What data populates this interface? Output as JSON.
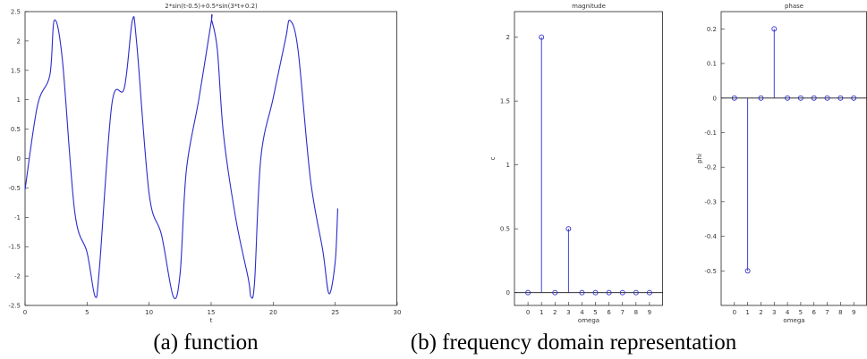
{
  "chart_data": [
    {
      "type": "line",
      "title": "2*sin(t-0.5)+0.5*sin(3*t+0.2)",
      "xlabel": "t",
      "ylabel": "",
      "xlim": [
        0,
        30
      ],
      "ylim": [
        -2.5,
        2.5
      ],
      "xticks": [
        "0",
        "5",
        "10",
        "15",
        "20",
        "25",
        "30"
      ],
      "yticks": [
        "2.5",
        "2",
        "1.5",
        "1",
        "0.5",
        "0",
        "-0.5",
        "-1",
        "-1.5",
        "-2",
        "-2.5"
      ],
      "x_range": [
        0,
        25.2
      ],
      "series": [
        {
          "x": [
            0,
            1,
            2,
            2.35,
            3,
            4,
            5,
            5.65,
            6,
            7,
            8,
            8.65,
            9,
            10,
            11,
            11.95,
            12.5,
            13,
            14,
            15,
            15.05,
            15.5,
            16,
            17,
            18,
            18.2,
            18.5,
            19,
            20,
            21,
            21.35,
            22,
            23,
            24,
            24.5,
            25,
            25.2
          ],
          "y": [
            -0.53,
            0.9,
            1.42,
            2.35,
            1.7,
            -0.9,
            -1.6,
            -2.35,
            -1.85,
            0.93,
            1.2,
            2.35,
            1.96,
            -0.6,
            -1.3,
            -2.35,
            -1.95,
            -0.2,
            1.0,
            2.32,
            2.35,
            1.85,
            0.4,
            -1.04,
            -2.05,
            -2.35,
            -2.1,
            0.0,
            1.03,
            2.04,
            2.35,
            1.85,
            -0.35,
            -1.57,
            -2.3,
            -1.75,
            -0.85
          ]
        }
      ]
    },
    {
      "type": "stem",
      "title": "magnitude",
      "xlabel": "omega",
      "ylabel": "c",
      "xlim": [
        -1,
        10
      ],
      "ylim": [
        -0.1,
        2.2
      ],
      "xticks": [
        "0",
        "1",
        "2",
        "3",
        "4",
        "5",
        "6",
        "7",
        "8",
        "9"
      ],
      "yticks": [
        "2",
        "1.5",
        "1",
        "0.5",
        "0"
      ],
      "x": [
        0,
        1,
        2,
        3,
        4,
        5,
        6,
        7,
        8,
        9
      ],
      "values": [
        0,
        2,
        0,
        0.5,
        0,
        0,
        0,
        0,
        0,
        0
      ]
    },
    {
      "type": "stem",
      "title": "phase",
      "xlabel": "omega",
      "ylabel": "phi",
      "xlim": [
        -1,
        10
      ],
      "ylim": [
        -0.6,
        0.25
      ],
      "xticks": [
        "0",
        "1",
        "2",
        "3",
        "4",
        "5",
        "6",
        "7",
        "8",
        "9"
      ],
      "yticks": [
        "0.2",
        "0.1",
        "0",
        "-0.1",
        "-0.2",
        "-0.3",
        "-0.4",
        "-0.5"
      ],
      "x": [
        0,
        1,
        2,
        3,
        4,
        5,
        6,
        7,
        8,
        9
      ],
      "values": [
        0,
        -0.5,
        0,
        0.2,
        0,
        0,
        0,
        0,
        0,
        0
      ]
    }
  ],
  "captions": {
    "a": "(a) function",
    "b": "(b) frequency domain representation"
  },
  "colors": {
    "line": "#2b2bcc",
    "frame": "#222222"
  }
}
